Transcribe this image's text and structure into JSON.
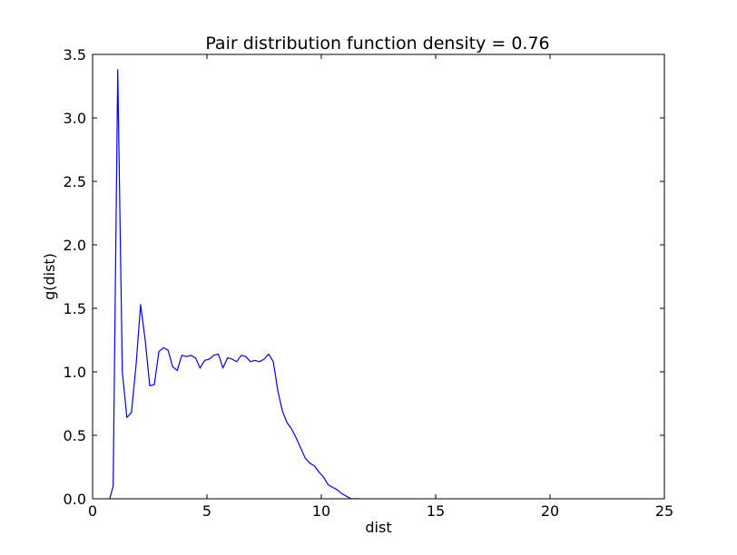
{
  "chart_data": {
    "type": "line",
    "title": "Pair distribution function density = 0.76",
    "xlabel": "dist",
    "ylabel": "g(dist)",
    "xlim": [
      0,
      25
    ],
    "ylim": [
      0,
      3.5
    ],
    "grid": false,
    "xticks": [
      0,
      5,
      10,
      15,
      20,
      25
    ],
    "xtick_labels": [
      "0",
      "5",
      "10",
      "15",
      "20",
      "25"
    ],
    "yticks": [
      0.0,
      0.5,
      1.0,
      1.5,
      2.0,
      2.5,
      3.0,
      3.5
    ],
    "ytick_labels": [
      "0.0",
      "0.5",
      "1.0",
      "1.5",
      "2.0",
      "2.5",
      "3.0",
      "3.5"
    ],
    "series": [
      {
        "color": "#0000ff",
        "x": [
          0.75,
          0.9,
          1.1,
          1.3,
          1.5,
          1.7,
          1.9,
          2.1,
          2.3,
          2.5,
          2.7,
          2.9,
          3.1,
          3.3,
          3.5,
          3.7,
          3.9,
          4.1,
          4.3,
          4.5,
          4.7,
          4.9,
          5.1,
          5.3,
          5.5,
          5.7,
          5.9,
          6.1,
          6.3,
          6.5,
          6.7,
          6.9,
          7.1,
          7.3,
          7.5,
          7.7,
          7.9,
          8.1,
          8.3,
          8.5,
          8.7,
          8.9,
          9.1,
          9.3,
          9.5,
          9.7,
          9.9,
          10.1,
          10.3,
          10.5,
          10.7,
          10.9,
          11.1,
          11.3,
          11.5,
          11.7
        ],
        "y": [
          0.0,
          0.1,
          3.38,
          1.0,
          0.64,
          0.68,
          1.05,
          1.53,
          1.25,
          0.89,
          0.9,
          1.16,
          1.19,
          1.17,
          1.04,
          1.01,
          1.13,
          1.12,
          1.13,
          1.11,
          1.03,
          1.09,
          1.1,
          1.13,
          1.14,
          1.03,
          1.11,
          1.1,
          1.08,
          1.13,
          1.12,
          1.08,
          1.09,
          1.08,
          1.1,
          1.14,
          1.08,
          0.85,
          0.69,
          0.6,
          0.55,
          0.48,
          0.4,
          0.32,
          0.28,
          0.26,
          0.21,
          0.17,
          0.11,
          0.09,
          0.07,
          0.04,
          0.02,
          0.0,
          0.0,
          0.0
        ]
      }
    ]
  }
}
